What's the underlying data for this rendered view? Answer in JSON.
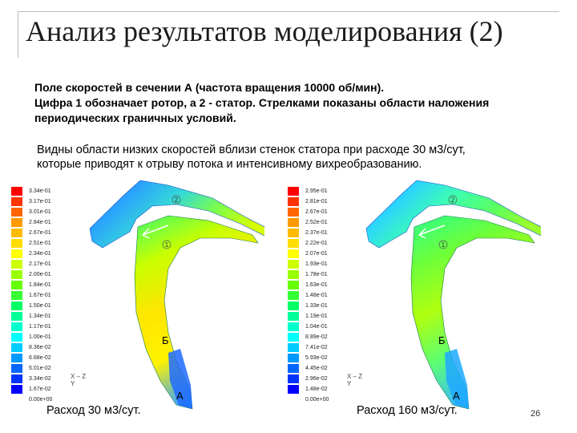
{
  "slide": {
    "title": "Анализ результатов моделирования (2)",
    "bold_lines": [
      "Поле скоростей в сечении А (частота вращения 10000 об/мин).",
      "Цифра 1 обозначает ротор, а 2 - статор. Стрелками показаны области наложения",
      "периодических граничных условий."
    ],
    "description_lines": [
      "Видны области низких скоростей вблизи стенок статора при расходе 30 м3/сут,",
      "которые приводят к отрыву потока и интенсивному вихреобразованию."
    ],
    "page_number": "26"
  },
  "colors": {
    "legend_scale": [
      "#ff0000",
      "#ff3300",
      "#ff6600",
      "#ff9900",
      "#ffbb00",
      "#ffdd00",
      "#ffff00",
      "#ccff00",
      "#99ff00",
      "#66ff00",
      "#33ff33",
      "#00ff66",
      "#00ff99",
      "#00ffcc",
      "#00ffff",
      "#00ccff",
      "#0099ff",
      "#0066ff",
      "#0033ff",
      "#0000ff"
    ]
  },
  "panels": [
    {
      "caption": "Расход 30 м3/сут.",
      "legend_values": [
        "3.34e-01",
        "3.17e-01",
        "3.01e-01",
        "2.84e-01",
        "2.67e-01",
        "2.51e-01",
        "2.34e-01",
        "2.17e-01",
        "2.00e-01",
        "1.84e-01",
        "1.67e-01",
        "1.50e-01",
        "1.34e-01",
        "1.17e-01",
        "1.00e-01",
        "8.36e-02",
        "6.68e-02",
        "5.01e-02",
        "3.34e-02",
        "1.67e-02",
        "0.00e+00"
      ],
      "axis_x": "X",
      "axis_z": "Z",
      "axis_y": "Y",
      "label_rotor": "1",
      "label_stator": "2",
      "label_b": "Б",
      "label_a": "А"
    },
    {
      "caption": "Расход 160 м3/сут.",
      "legend_values": [
        "2.95e-01",
        "2.81e-01",
        "2.67e-01",
        "2.52e-01",
        "2.37e-01",
        "2.22e-01",
        "2.07e-01",
        "1.93e-01",
        "1.78e-01",
        "1.63e-01",
        "1.48e-01",
        "1.33e-01",
        "1.19e-01",
        "1.04e-01",
        "8.89e-02",
        "7.41e-02",
        "5.93e-02",
        "4.45e-02",
        "2.96e-02",
        "1.48e-02",
        "0.00e+00"
      ],
      "axis_x": "X",
      "axis_z": "Z",
      "axis_y": "Y",
      "label_rotor": "1",
      "label_stator": "2",
      "label_b": "Б",
      "label_a": "А"
    }
  ]
}
